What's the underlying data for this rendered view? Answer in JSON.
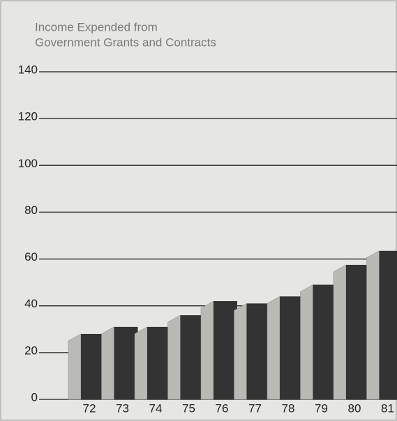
{
  "chart_data": {
    "type": "bar",
    "title": [
      "Income Expended from",
      "Government Grants and Contracts"
    ],
    "categories": [
      "72",
      "73",
      "74",
      "75",
      "76",
      "77",
      "78",
      "79",
      "80",
      "81"
    ],
    "values": [
      28,
      31,
      31,
      36,
      42,
      41,
      44,
      49,
      57.5,
      63.5
    ],
    "color": "#333333",
    "side_color": "#b9b9b6",
    "ylim": [
      0,
      140
    ],
    "yticks": [
      0,
      20,
      40,
      60,
      80,
      100,
      120,
      140
    ],
    "grid": true
  }
}
